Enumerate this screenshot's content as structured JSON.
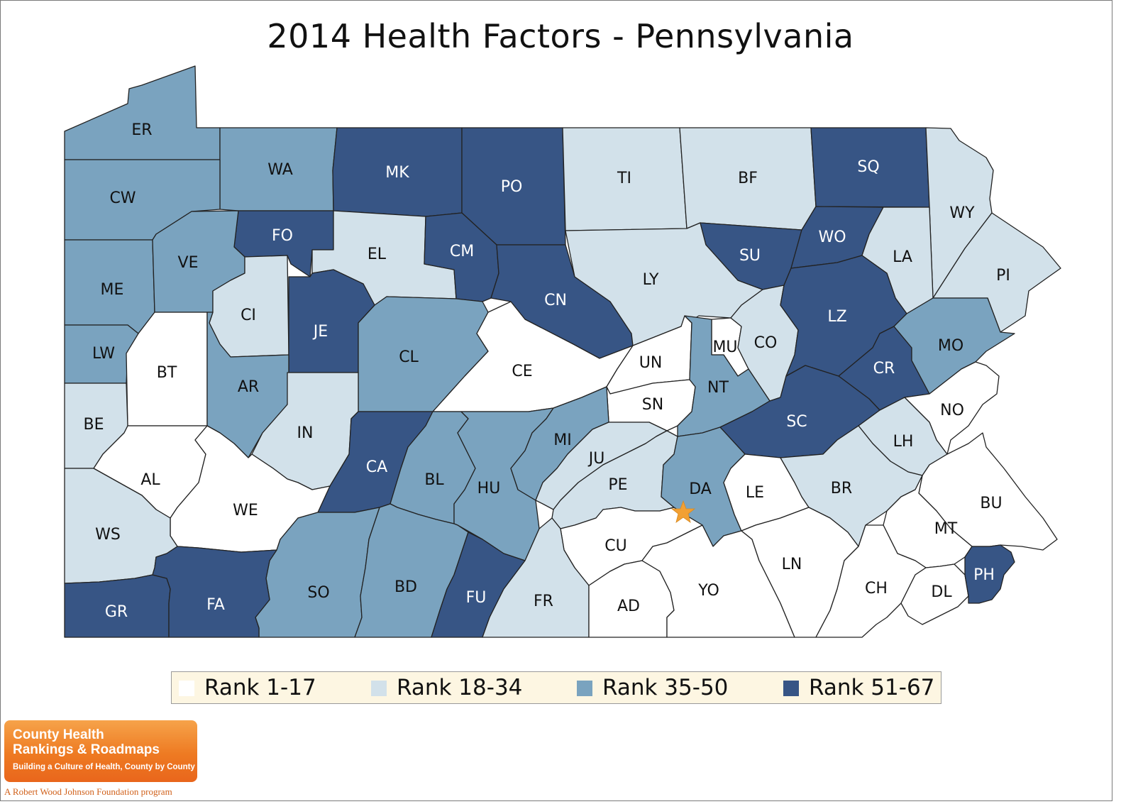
{
  "title": "2014 Health Factors - Pennsylvania",
  "colors": {
    "r1": "#ffffff",
    "r2": "#d2e1ea",
    "r3": "#7aa3bf",
    "r4": "#375585",
    "star": "#f2a033"
  },
  "legend": [
    {
      "label": "Rank 1-17",
      "cls": "r1"
    },
    {
      "label": "Rank 18-34",
      "cls": "r2"
    },
    {
      "label": "Rank 35-50",
      "cls": "r3"
    },
    {
      "label": "Rank 51-67",
      "cls": "r4"
    }
  ],
  "counties": {
    "ER": "r3",
    "WA": "r3",
    "MK": "r4",
    "PO": "r4",
    "TI": "r2",
    "BF": "r2",
    "SQ": "r4",
    "WY": "r2",
    "CW": "r3",
    "FO": "r4",
    "EL": "r2",
    "CM": "r4",
    "CN": "r4",
    "LY": "r2",
    "SU": "r4",
    "WO": "r4",
    "LA": "r2",
    "PI": "r2",
    "ME": "r3",
    "VE": "r3",
    "CI": "r2",
    "JE": "r4",
    "CL": "r3",
    "CE": "r1",
    "UN": "r1",
    "MU": "r1",
    "CO": "r2",
    "LZ": "r4",
    "CR": "r4",
    "MO": "r3",
    "LW": "r3",
    "BT": "r1",
    "AR": "r3",
    "IN": "r2",
    "BE": "r2",
    "SN": "r1",
    "NT": "r3",
    "SC": "r4",
    "NO": "r1",
    "AL": "r1",
    "CA": "r4",
    "BL": "r3",
    "HU": "r3",
    "MI": "r3",
    "JU": "r2",
    "LH": "r2",
    "WE": "r1",
    "PE": "r2",
    "DA": "r3",
    "LE": "r1",
    "BR": "r2",
    "BU": "r1",
    "WS": "r2",
    "MT": "r1",
    "CU": "r1",
    "SO": "r3",
    "BD": "r3",
    "FU": "r4",
    "FR": "r2",
    "AD": "r1",
    "YO": "r1",
    "LN": "r1",
    "CH": "r1",
    "DL": "r1",
    "PH": "r4",
    "GR": "r4",
    "FA": "r4"
  },
  "logo": {
    "line1": "County Health",
    "line2": "Rankings & Roadmaps",
    "line3": "Building a Culture of Health, County by County"
  },
  "credit": "A Robert Wood Johnson Foundation program"
}
